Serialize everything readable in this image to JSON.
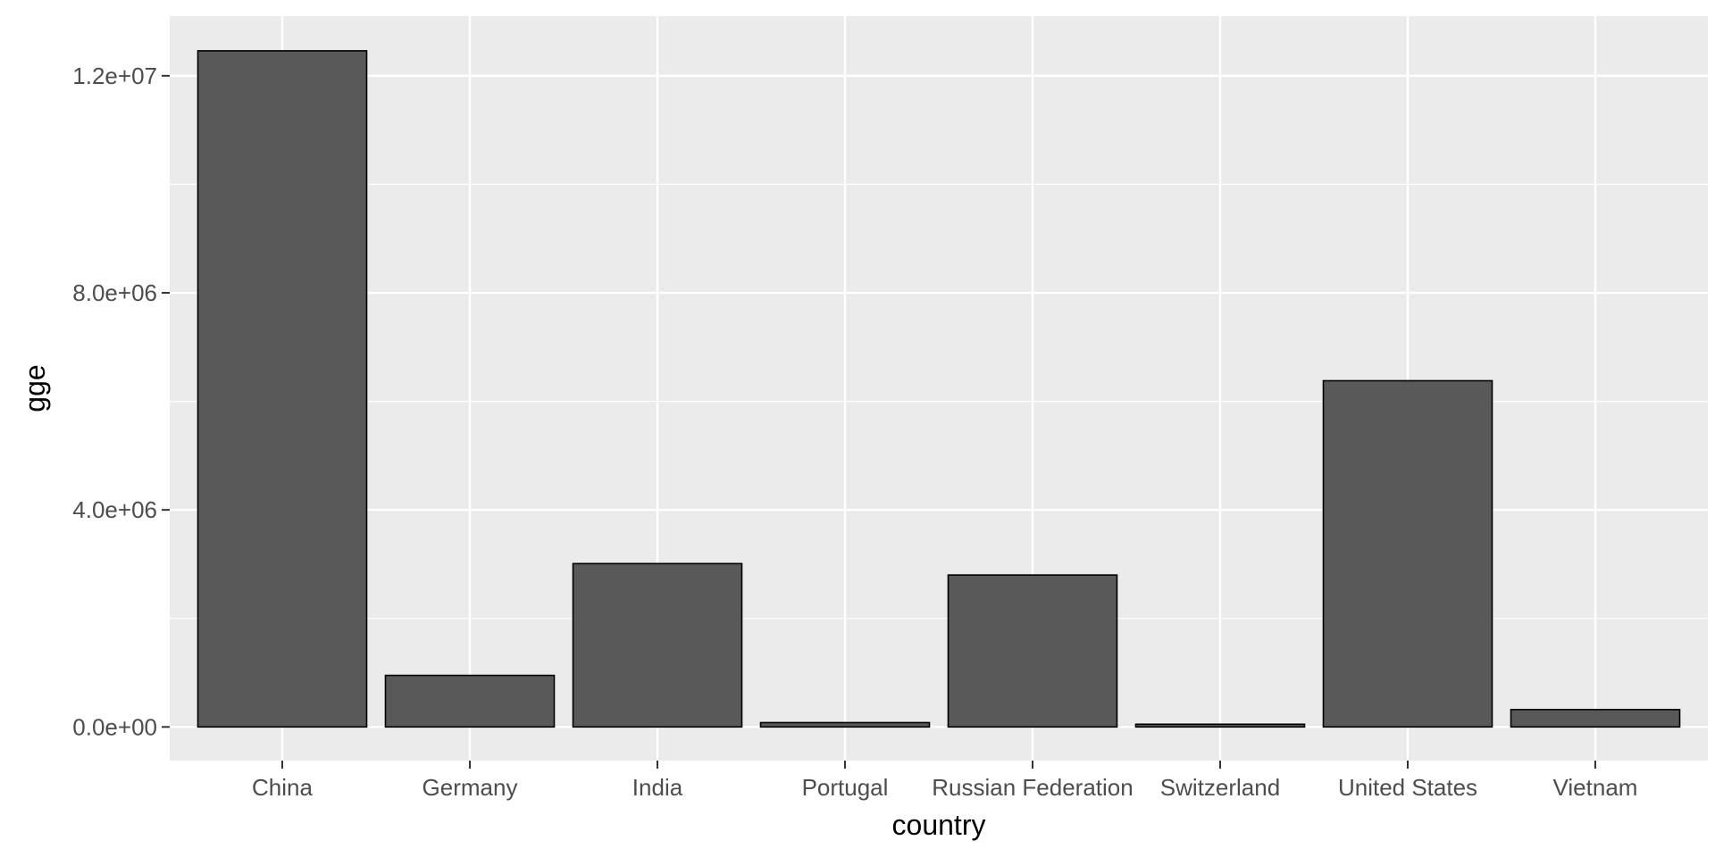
{
  "chart_data": {
    "type": "bar",
    "title": "",
    "xlabel": "country",
    "ylabel": "gge",
    "categories": [
      "China",
      "Germany",
      "India",
      "Portugal",
      "Russian Federation",
      "Switzerland",
      "United States",
      "Vietnam"
    ],
    "values": [
      12460000,
      950000,
      3010000,
      80000,
      2800000,
      50000,
      6380000,
      320000
    ],
    "ylim": [
      -620000,
      13100000
    ],
    "yticks": [
      0,
      4000000,
      8000000,
      12000000
    ],
    "ytick_labels": [
      "0.0e+00",
      "4.0e+06",
      "8.0e+06",
      "1.2e+07"
    ],
    "grid": true,
    "legend": "none",
    "colors": {
      "panel_background": "#ebebeb",
      "grid_major": "#ffffff",
      "bar_fill": "#595959",
      "bar_outline": "#000000",
      "tick_mark": "#333333",
      "tick_label": "#4d4d4d"
    }
  }
}
